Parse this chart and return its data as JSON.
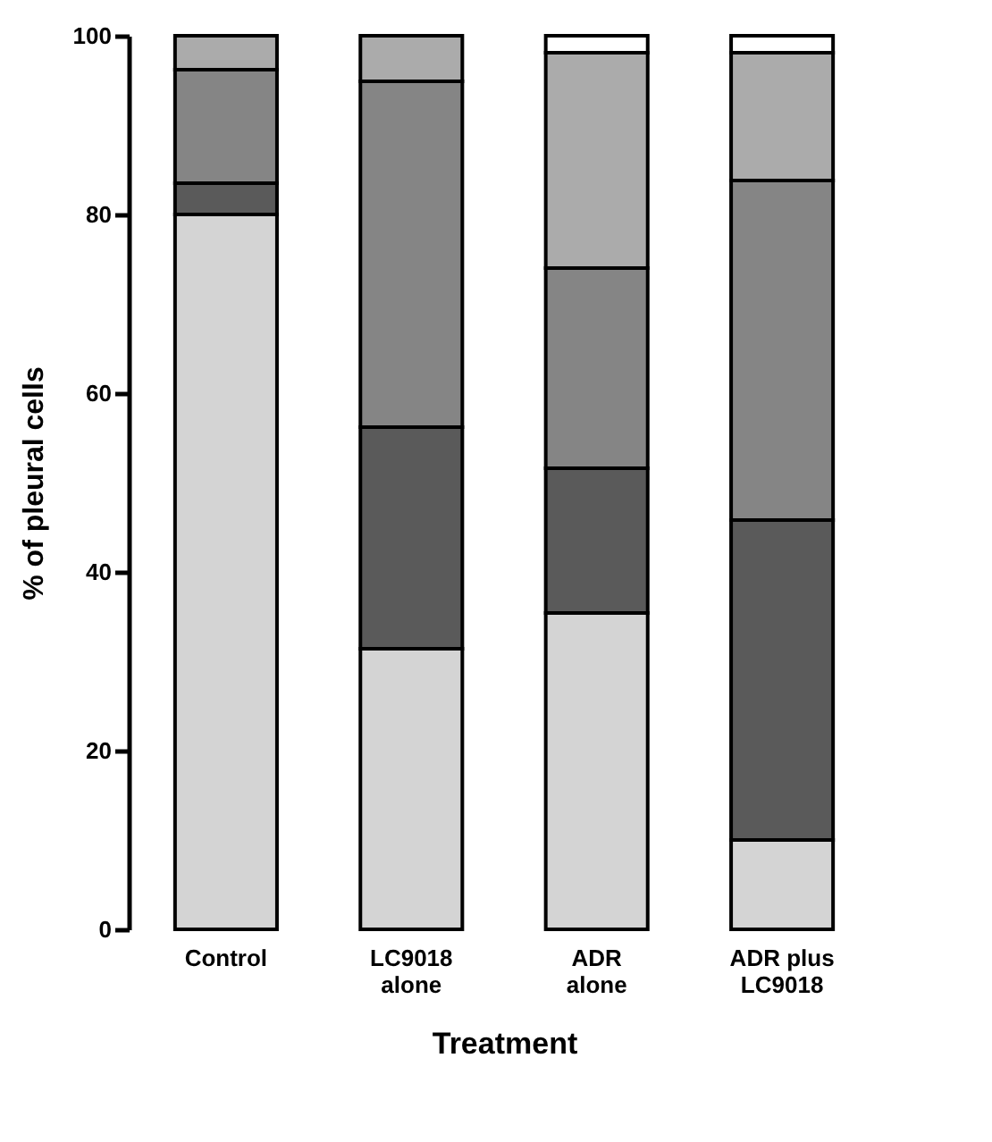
{
  "chart_data": {
    "type": "bar",
    "stacked": true,
    "xlabel": "Treatment",
    "ylabel": "% of pleural cells",
    "categories": [
      "Control",
      "LC9018 alone",
      "ADR alone",
      "ADR plus LC9018"
    ],
    "series": [
      {
        "color": "#d4d4d4",
        "values": [
          80,
          31.4,
          35.4,
          10
        ]
      },
      {
        "color": "#5a5a5a",
        "values": [
          3.5,
          24.8,
          16.2,
          35.8
        ]
      },
      {
        "color": "#858585",
        "values": [
          12.7,
          38.7,
          22.4,
          38
        ]
      },
      {
        "color": "#ababab",
        "values": [
          3.8,
          5.1,
          24.1,
          14.3
        ]
      },
      {
        "color": "#ffffff",
        "values": [
          null,
          null,
          1.9,
          1.9
        ]
      }
    ],
    "ylim": [
      0,
      100
    ],
    "yticks": [
      0,
      20,
      40,
      60,
      80,
      100
    ],
    "grid": false,
    "legend": false
  }
}
